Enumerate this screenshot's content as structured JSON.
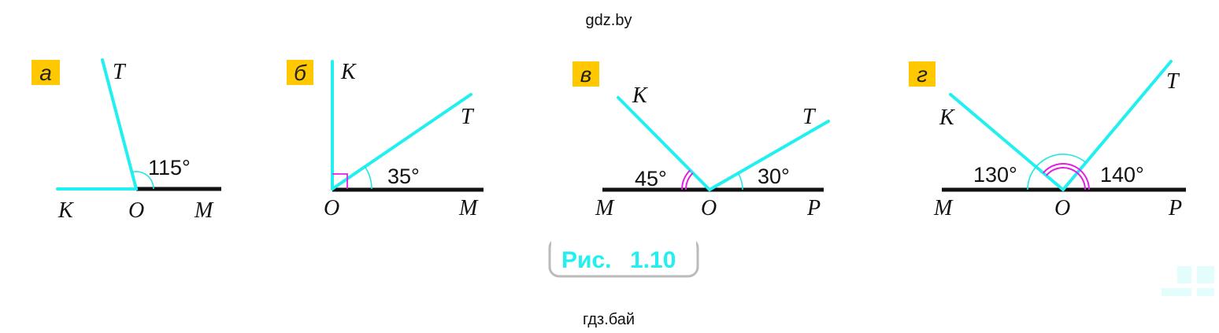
{
  "header_watermark": "gdz.by",
  "footer_watermark": "гдз.бай",
  "caption": {
    "prefix": "Рис.",
    "number": "1.10"
  },
  "colors": {
    "ray": "#22f0f0",
    "line": "#111111",
    "arc_single": "#22e6e6",
    "arc_double": "#e020e0",
    "label_bg": "#ffc800",
    "caption_text": "#22f0f0"
  },
  "panels": [
    {
      "label": "а",
      "points": {
        "T": "T",
        "K": "K",
        "O": "O",
        "M": "M"
      },
      "angles": [
        "115°"
      ]
    },
    {
      "label": "б",
      "points": {
        "K": "K",
        "T": "T",
        "O": "O",
        "M": "M"
      },
      "angles": [
        "35°"
      ]
    },
    {
      "label": "в",
      "points": {
        "K": "K",
        "T": "T",
        "M": "M",
        "O": "O",
        "P": "P"
      },
      "angles": [
        "45°",
        "30°"
      ]
    },
    {
      "label": "г",
      "points": {
        "K": "K",
        "T": "T",
        "M": "M",
        "O": "O",
        "P": "P"
      },
      "angles": [
        "130°",
        "140°"
      ]
    }
  ]
}
